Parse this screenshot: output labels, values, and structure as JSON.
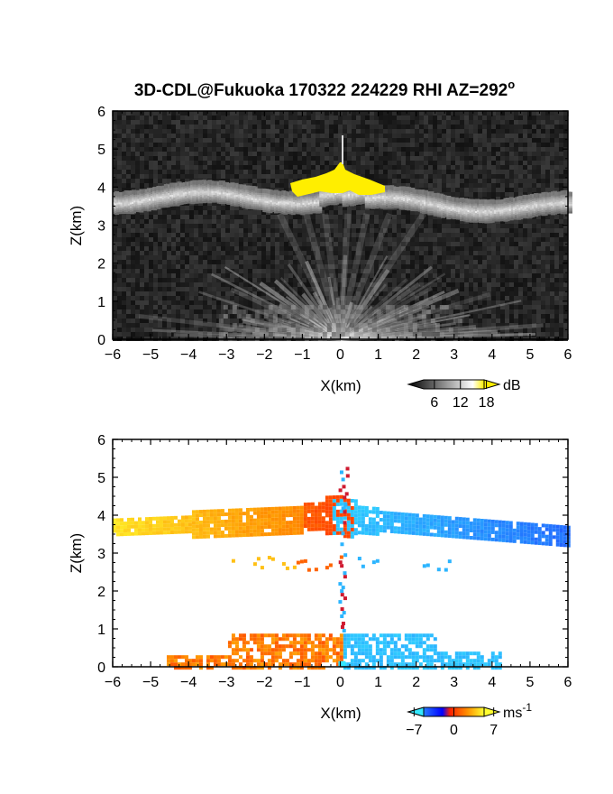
{
  "title": "3D-CDL@Fukuoka 170322 224229 RHI AZ=292",
  "title_degree": "o",
  "chart_data": [
    {
      "type": "heatmap",
      "name": "reflectivity",
      "xlabel": "X(km)",
      "ylabel": "Z(km)",
      "xlim": [
        -6,
        6
      ],
      "ylim": [
        0,
        6
      ],
      "xticks": [
        "-6",
        "-5",
        "-4",
        "-3",
        "-2",
        "-1",
        "0",
        "1",
        "2",
        "3",
        "4",
        "5",
        "6"
      ],
      "yticks": [
        "0",
        "1",
        "2",
        "3",
        "4",
        "5",
        "6"
      ],
      "colorbar": {
        "unit": "dB",
        "ticks": [
          "6",
          "12",
          "18"
        ],
        "range": [
          0,
          21
        ]
      },
      "features": [
        {
          "label": "cloud layer",
          "x_range": [
            -6,
            6
          ],
          "z_center_range": [
            3.6,
            4.0
          ],
          "intensity_db": 14
        },
        {
          "label": "saturated core (>18 dB)",
          "x_range": [
            -1.3,
            1.2
          ],
          "z_range": [
            3.85,
            4.7
          ],
          "color": "#ffee00"
        },
        {
          "label": "near-ground returns",
          "x_range": [
            -3,
            3
          ],
          "z_range": [
            0,
            0.9
          ],
          "intensity_db": 12
        }
      ]
    },
    {
      "type": "heatmap",
      "name": "doppler velocity",
      "xlabel": "X(km)",
      "ylabel": "Z(km)",
      "xlim": [
        -6,
        6
      ],
      "ylim": [
        0,
        6
      ],
      "xticks": [
        "-6",
        "-5",
        "-4",
        "-3",
        "-2",
        "-1",
        "0",
        "1",
        "2",
        "3",
        "4",
        "5",
        "6"
      ],
      "yticks": [
        "0",
        "1",
        "2",
        "3",
        "4",
        "5",
        "6"
      ],
      "colorbar": {
        "unit": "ms",
        "unit_exponent": "-1",
        "ticks": [
          "-7",
          "0",
          "7"
        ],
        "range": [
          -8,
          8
        ]
      },
      "features": [
        {
          "label": "upper layer west (toward +)",
          "x_range": [
            -6,
            0
          ],
          "z_range": [
            3.6,
            4.4
          ],
          "velocity": [
            3,
            7
          ]
        },
        {
          "label": "upper layer east (toward -)",
          "x_range": [
            0,
            6
          ],
          "z_range": [
            3.4,
            4.5
          ],
          "velocity": [
            -7,
            -4
          ]
        },
        {
          "label": "mid echoes",
          "x_range": [
            -3,
            3
          ],
          "z_range": [
            2.4,
            2.9
          ],
          "velocity": [
            -6,
            6
          ]
        },
        {
          "label": "low layer west",
          "x_range": [
            -4.5,
            0
          ],
          "z_range": [
            0,
            1.0
          ],
          "velocity": [
            2,
            5
          ]
        },
        {
          "label": "low layer east",
          "x_range": [
            0,
            4
          ],
          "z_range": [
            0,
            0.9
          ],
          "velocity": [
            -8,
            -6
          ]
        }
      ]
    }
  ]
}
